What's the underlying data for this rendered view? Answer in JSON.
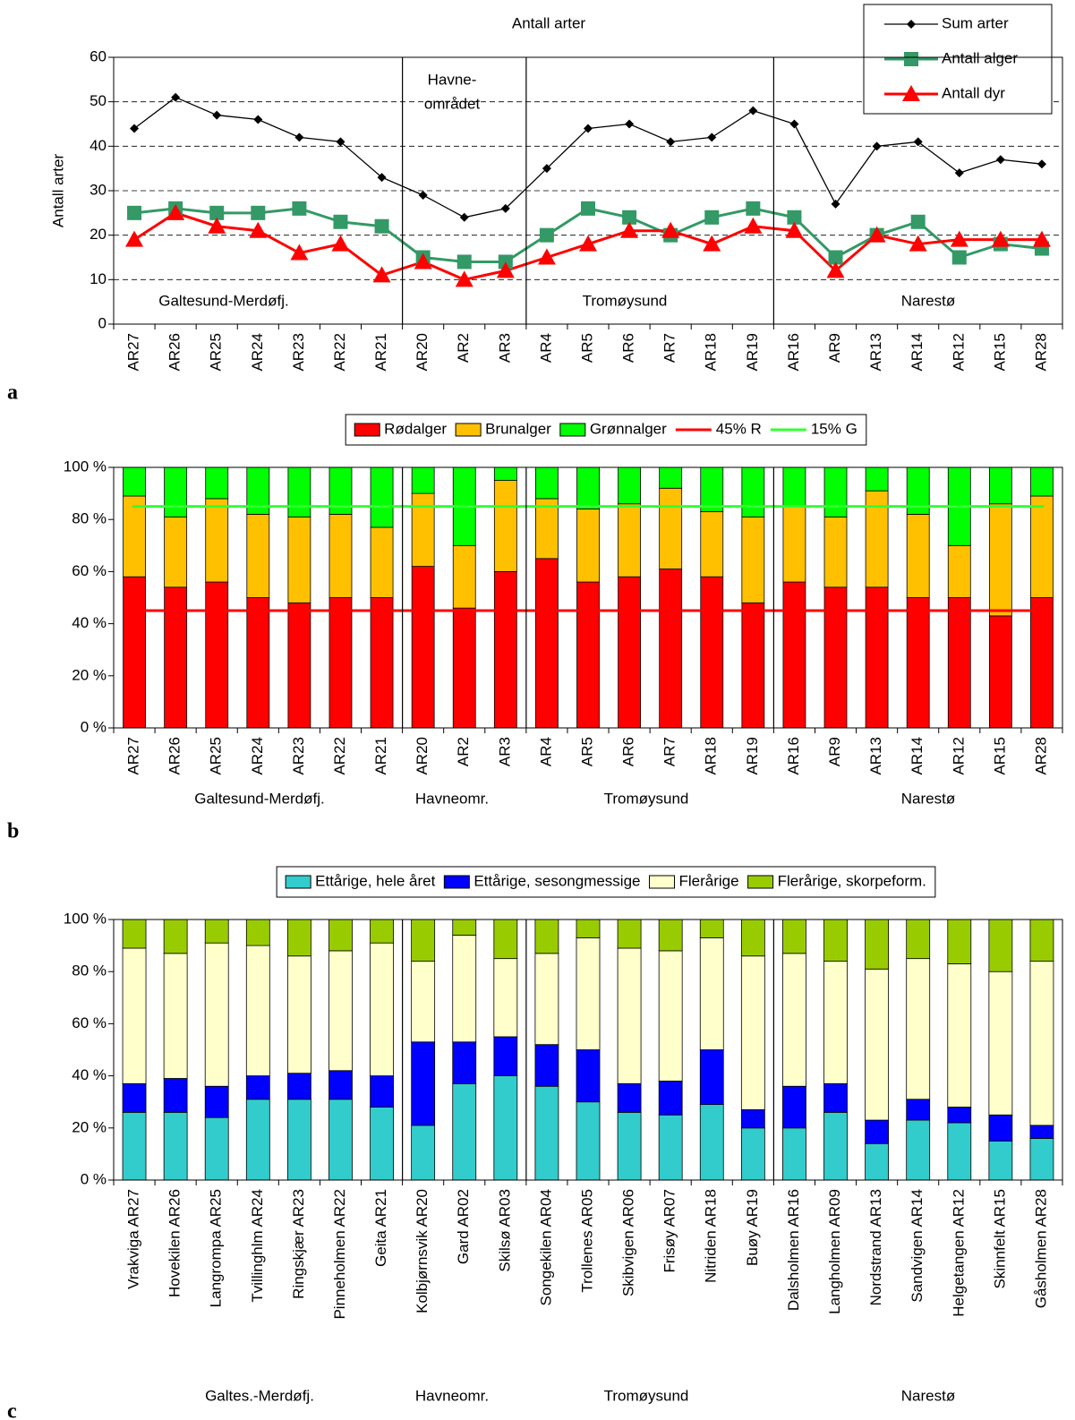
{
  "chart_data": [
    {
      "type": "line",
      "panel": "a",
      "title": "Antall arter",
      "y_label": "Antall arter",
      "categories": [
        "AR27",
        "AR26",
        "AR25",
        "AR24",
        "AR23",
        "AR22",
        "AR21",
        "AR20",
        "AR2",
        "AR3",
        "AR4",
        "AR5",
        "AR6",
        "AR7",
        "AR18",
        "AR19",
        "AR16",
        "AR9",
        "AR13",
        "AR14",
        "AR12",
        "AR15",
        "AR28"
      ],
      "series": [
        {
          "name": "Sum arter",
          "color": "#000000",
          "marker": "diamond",
          "values": [
            44,
            51,
            47,
            46,
            42,
            41,
            33,
            29,
            24,
            26,
            35,
            44,
            45,
            41,
            42,
            48,
            45,
            27,
            40,
            41,
            34,
            37,
            36
          ]
        },
        {
          "name": "Antall alger",
          "color": "#339966",
          "marker": "square",
          "values": [
            25,
            26,
            25,
            25,
            26,
            23,
            22,
            15,
            14,
            14,
            20,
            26,
            24,
            20,
            24,
            26,
            24,
            15,
            20,
            23,
            15,
            18,
            17
          ]
        },
        {
          "name": "Antall dyr",
          "color": "#ff0000",
          "marker": "triangle",
          "values": [
            19,
            25,
            22,
            21,
            16,
            18,
            11,
            14,
            10,
            12,
            15,
            18,
            21,
            21,
            18,
            22,
            21,
            12,
            20,
            18,
            19,
            19,
            19
          ]
        }
      ],
      "ylim": [
        0,
        60
      ],
      "yticks": [
        0,
        10,
        20,
        30,
        40,
        50,
        60
      ],
      "grid": true,
      "legend": "top-right",
      "annotations": [
        "Galtesund-Merdøfj.",
        "Havne-",
        "området",
        "Tromøysund",
        "Narestø"
      ]
    },
    {
      "type": "stacked-bar",
      "panel": "b",
      "categories": [
        "AR27",
        "AR26",
        "AR25",
        "AR24",
        "AR23",
        "AR22",
        "AR21",
        "AR20",
        "AR2",
        "AR3",
        "AR4",
        "AR5",
        "AR6",
        "AR7",
        "AR18",
        "AR19",
        "AR16",
        "AR9",
        "AR13",
        "AR14",
        "AR12",
        "AR15",
        "AR28"
      ],
      "series": [
        {
          "name": "Rødalger",
          "color": "#ff0000",
          "values": [
            58,
            54,
            56,
            50,
            48,
            50,
            50,
            62,
            46,
            60,
            65,
            56,
            58,
            61,
            58,
            48,
            56,
            54,
            54,
            50,
            50,
            43,
            50
          ]
        },
        {
          "name": "Brunalger",
          "color": "#ffc000",
          "values": [
            31,
            27,
            32,
            32,
            33,
            32,
            27,
            28,
            24,
            35,
            23,
            28,
            28,
            31,
            25,
            33,
            29,
            27,
            37,
            32,
            20,
            43,
            39
          ]
        },
        {
          "name": "Grønnalger",
          "color": "#00ff00",
          "values": [
            11,
            19,
            12,
            18,
            19,
            18,
            23,
            10,
            30,
            5,
            12,
            16,
            14,
            8,
            17,
            19,
            15,
            19,
            9,
            18,
            30,
            14,
            11
          ]
        }
      ],
      "reference_lines": [
        {
          "name": "45% R",
          "color": "#ff0000",
          "value": 45
        },
        {
          "name": "15% G",
          "color": "#33ff33",
          "value": 85
        }
      ],
      "ylim": [
        0,
        100
      ],
      "yticks": [
        {
          "value": 0,
          "label": "0 %"
        },
        {
          "value": 20,
          "label": "20 %"
        },
        {
          "value": 40,
          "label": "40 %"
        },
        {
          "value": 60,
          "label": "60 %"
        },
        {
          "value": 80,
          "label": "80 %"
        },
        {
          "value": 100,
          "label": "100 %"
        }
      ],
      "grid": false,
      "legend": "top",
      "group_labels": [
        "Galtesund-Merdøfj.",
        "Havneomr.",
        "Tromøysund",
        "Narestø"
      ]
    },
    {
      "type": "stacked-bar",
      "panel": "c",
      "categories": [
        "Vrakviga AR27",
        "Hovekilen AR26",
        "Langrompa AR25",
        "Tvillinghlm AR24",
        "Ringskjær AR23",
        "Pinneholmen AR22",
        "Geita AR21",
        "Kolbjørnsvik AR20",
        "Gard AR02",
        "Skilsø AR03",
        "Songekilen AR04",
        "Trollenes AR05",
        "Skibvigen AR06",
        "Frisøy AR07",
        "Nitriden AR18",
        "Buøy AR19",
        "Dalsholmen AR16",
        "Langholmen AR09",
        "Nordstrand AR13",
        "Sandvigen AR14",
        "Helgetangen AR12",
        "Skinnfelt AR15",
        "Gåsholmen AR28"
      ],
      "series": [
        {
          "name": "Ettårige, hele året",
          "color": "#33cccc",
          "values": [
            26,
            26,
            24,
            31,
            31,
            31,
            28,
            21,
            37,
            40,
            36,
            30,
            26,
            25,
            29,
            20,
            20,
            26,
            14,
            23,
            22,
            15,
            16
          ]
        },
        {
          "name": "Ettårige, sesongmessige",
          "color": "#0000ff",
          "values": [
            11,
            13,
            12,
            9,
            10,
            11,
            12,
            32,
            16,
            15,
            16,
            20,
            11,
            13,
            21,
            7,
            16,
            11,
            9,
            8,
            6,
            10,
            5
          ]
        },
        {
          "name": "Flerårige",
          "color": "#ffffcc",
          "values": [
            52,
            48,
            55,
            50,
            45,
            46,
            51,
            31,
            41,
            30,
            35,
            43,
            52,
            50,
            43,
            59,
            51,
            47,
            58,
            54,
            55,
            55,
            63
          ]
        },
        {
          "name": "Flerårige, skorpeform.",
          "color": "#99cc00",
          "values": [
            11,
            13,
            9,
            10,
            14,
            12,
            9,
            16,
            6,
            15,
            13,
            7,
            11,
            12,
            7,
            14,
            13,
            16,
            19,
            15,
            17,
            20,
            16
          ]
        }
      ],
      "ylim": [
        0,
        100
      ],
      "yticks": [
        {
          "value": 0,
          "label": "0 %"
        },
        {
          "value": 20,
          "label": "20 %"
        },
        {
          "value": 40,
          "label": "40 %"
        },
        {
          "value": 60,
          "label": "60 %"
        },
        {
          "value": 80,
          "label": "80 %"
        },
        {
          "value": 100,
          "label": "100 %"
        }
      ],
      "grid": false,
      "legend": "top",
      "group_labels": [
        "Galtes.-Merdøfj.",
        "Havneomr.",
        "Tromøysund",
        "Narestø"
      ]
    }
  ]
}
